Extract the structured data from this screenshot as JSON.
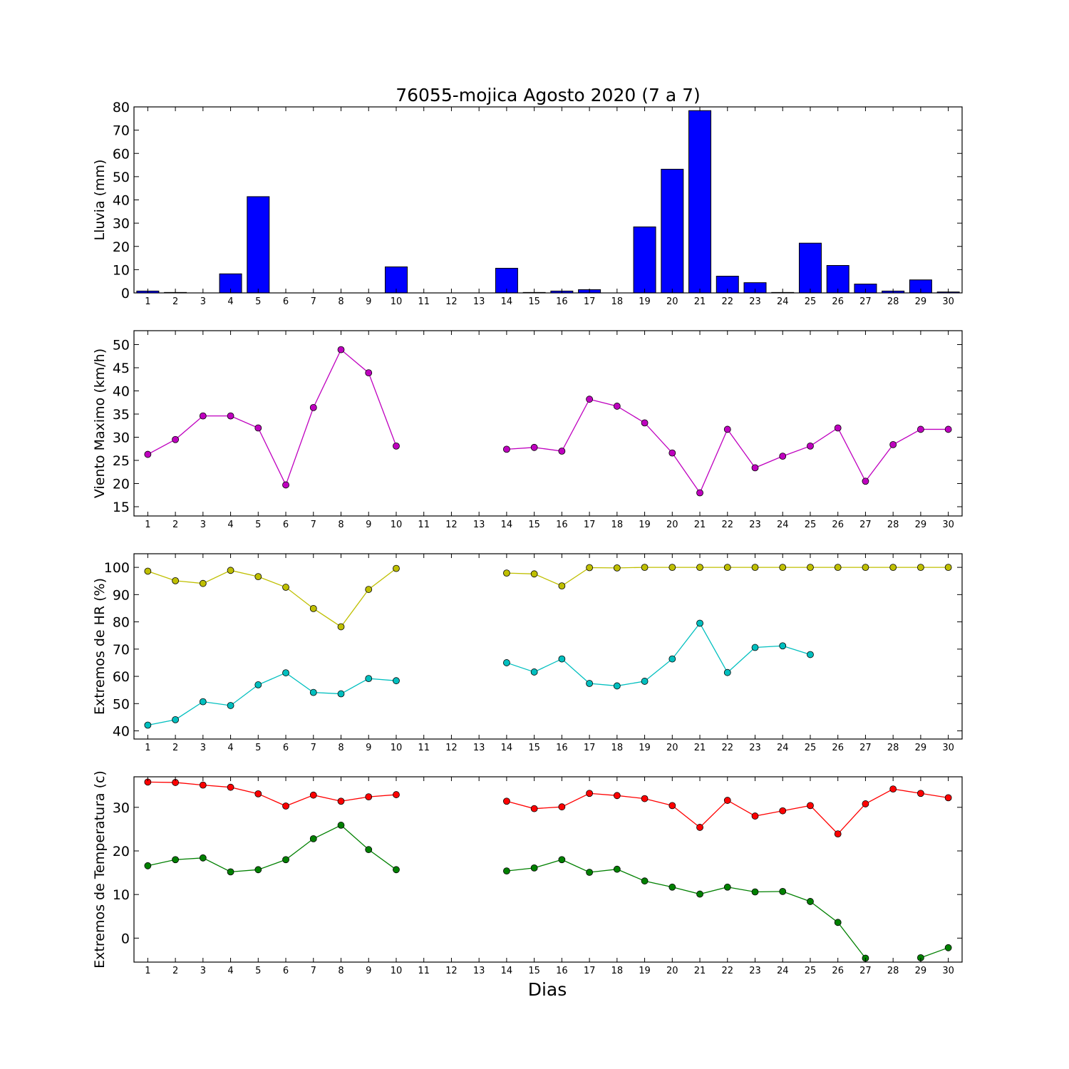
{
  "figure": {
    "title": "76055-mojica Agosto 2020  (7 a 7)",
    "xlabel": "Dias"
  },
  "chart_data": [
    {
      "type": "bar",
      "ylabel": "Lluvia (mm)",
      "ylim": [
        0,
        80
      ],
      "yticks": [
        0,
        10,
        20,
        30,
        40,
        50,
        60,
        70,
        80
      ],
      "categories": [
        1,
        2,
        3,
        4,
        5,
        6,
        7,
        8,
        9,
        10,
        11,
        12,
        13,
        14,
        15,
        16,
        17,
        18,
        19,
        20,
        21,
        22,
        23,
        24,
        25,
        26,
        27,
        28,
        29,
        30
      ],
      "series": [
        {
          "color": "#0000ff",
          "values": [
            0.8,
            0.2,
            0,
            8.2,
            41.4,
            0,
            0,
            0,
            0,
            11.2,
            0,
            0,
            0,
            10.6,
            0.2,
            0.8,
            1.4,
            0,
            28.4,
            53.2,
            78.4,
            7.2,
            4.4,
            0.2,
            21.4,
            11.8,
            3.8,
            0.8,
            5.6,
            0.4
          ]
        }
      ]
    },
    {
      "type": "line",
      "ylabel": "Viento Maximo (km/h)",
      "ylim": [
        13,
        53
      ],
      "yticks": [
        15,
        20,
        25,
        30,
        35,
        40,
        45,
        50
      ],
      "x": [
        1,
        2,
        3,
        4,
        5,
        6,
        7,
        8,
        9,
        10,
        11,
        12,
        13,
        14,
        15,
        16,
        17,
        18,
        19,
        20,
        21,
        22,
        23,
        24,
        25,
        26,
        27,
        28,
        29,
        30
      ],
      "series": [
        {
          "color": "#bf00bf",
          "values": [
            26.3,
            29.5,
            34.6,
            34.6,
            32.0,
            19.7,
            36.4,
            48.9,
            43.9,
            28.1,
            null,
            null,
            null,
            27.4,
            27.8,
            27.0,
            38.2,
            36.7,
            33.1,
            26.6,
            18.0,
            31.7,
            23.4,
            25.9,
            28.1,
            32.0,
            20.5,
            28.4,
            31.7,
            31.7
          ]
        }
      ]
    },
    {
      "type": "line",
      "ylabel": "Extremos de HR (%)",
      "ylim": [
        37,
        105
      ],
      "yticks": [
        40,
        50,
        60,
        70,
        80,
        90,
        100
      ],
      "x": [
        1,
        2,
        3,
        4,
        5,
        6,
        7,
        8,
        9,
        10,
        11,
        12,
        13,
        14,
        15,
        16,
        17,
        18,
        19,
        20,
        21,
        22,
        23,
        24,
        25,
        26,
        27,
        28,
        29,
        30
      ],
      "series": [
        {
          "color": "#bfbf00",
          "values": [
            98.6,
            95.1,
            94.1,
            98.9,
            96.6,
            92.7,
            84.9,
            78.2,
            91.9,
            99.6,
            null,
            null,
            null,
            97.9,
            97.6,
            93.2,
            99.9,
            99.8,
            100,
            100,
            100,
            100,
            100,
            100,
            100,
            100,
            100,
            100,
            100,
            100
          ]
        },
        {
          "color": "#00bfbf",
          "values": [
            42.1,
            44.1,
            50.7,
            49.3,
            56.9,
            61.3,
            54.1,
            53.6,
            59.2,
            58.4,
            null,
            null,
            null,
            65.0,
            61.6,
            66.4,
            57.4,
            56.5,
            58.2,
            66.4,
            79.5,
            61.4,
            70.6,
            71.2,
            68.0,
            null,
            null,
            null,
            null,
            null
          ]
        }
      ]
    },
    {
      "type": "line",
      "ylabel": "Extremos de Temperatura (c)",
      "ylim": [
        -5.5,
        37
      ],
      "yticks": [
        0,
        10,
        20,
        30
      ],
      "x": [
        1,
        2,
        3,
        4,
        5,
        6,
        7,
        8,
        9,
        10,
        11,
        12,
        13,
        14,
        15,
        16,
        17,
        18,
        19,
        20,
        21,
        22,
        23,
        24,
        25,
        26,
        27,
        28,
        29,
        30
      ],
      "series": [
        {
          "color": "#ff0000",
          "values": [
            35.8,
            35.7,
            35.1,
            34.6,
            33.1,
            30.3,
            32.8,
            31.4,
            32.4,
            32.9,
            null,
            null,
            null,
            31.4,
            29.7,
            30.1,
            33.2,
            32.7,
            32.0,
            30.4,
            25.4,
            31.6,
            28.0,
            29.2,
            30.4,
            23.9,
            30.8,
            34.2,
            33.2,
            32.2
          ]
        },
        {
          "color": "#008000",
          "values": [
            16.6,
            18.0,
            18.4,
            15.2,
            15.7,
            18.0,
            22.8,
            25.9,
            20.3,
            15.7,
            null,
            null,
            null,
            15.4,
            16.1,
            18.0,
            15.1,
            15.8,
            13.1,
            11.7,
            10.1,
            11.7,
            10.6,
            10.7,
            8.4,
            3.6,
            -4.6,
            null,
            -4.5,
            -2.2
          ]
        }
      ]
    }
  ]
}
